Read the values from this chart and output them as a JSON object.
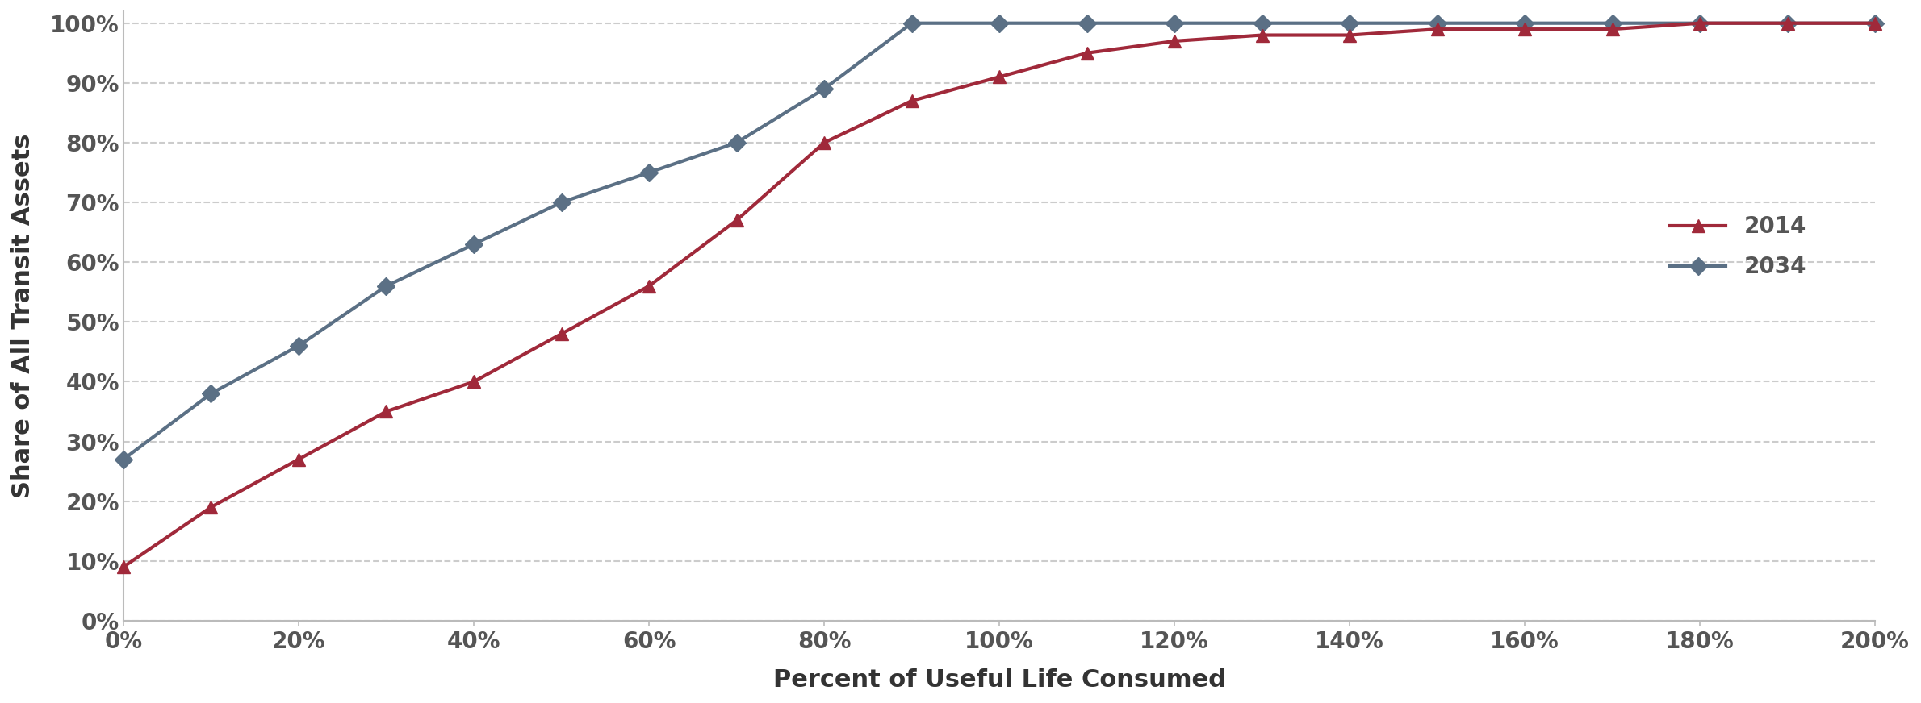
{
  "x_2014": [
    0,
    10,
    20,
    30,
    40,
    50,
    60,
    70,
    80,
    90,
    100,
    110,
    120,
    130,
    140,
    150,
    160,
    170,
    180,
    190,
    200
  ],
  "y_2014": [
    9,
    19,
    27,
    35,
    40,
    48,
    56,
    67,
    80,
    87,
    91,
    95,
    97,
    98,
    98,
    99,
    99,
    99,
    100,
    100,
    100
  ],
  "x_2034": [
    0,
    10,
    20,
    30,
    40,
    50,
    60,
    70,
    80,
    90,
    100,
    110,
    120,
    130,
    140,
    150,
    160,
    170,
    180,
    190,
    200
  ],
  "y_2034": [
    27,
    38,
    46,
    56,
    63,
    70,
    75,
    80,
    89,
    100,
    100,
    100,
    100,
    100,
    100,
    100,
    100,
    100,
    100,
    100,
    100
  ],
  "color_2014": "#A0293A",
  "color_2034": "#5B7085",
  "xlabel": "Percent of Useful Life Consumed",
  "ylabel": "Share of All Transit Assets",
  "label_2014": "2014",
  "label_2034": "2034",
  "xlim": [
    0,
    200
  ],
  "ylim": [
    0,
    100
  ],
  "xticks": [
    0,
    20,
    40,
    60,
    80,
    100,
    120,
    140,
    160,
    180,
    200
  ],
  "yticks": [
    0,
    10,
    20,
    30,
    40,
    50,
    60,
    70,
    80,
    90,
    100
  ],
  "background_color": "#ffffff",
  "grid_color": "#cccccc",
  "tick_label_color": "#555555",
  "axis_label_color": "#333333",
  "legend_fontsize": 20,
  "axis_label_fontsize": 22,
  "tick_fontsize": 20,
  "line_width": 3.0,
  "marker_size": 11
}
